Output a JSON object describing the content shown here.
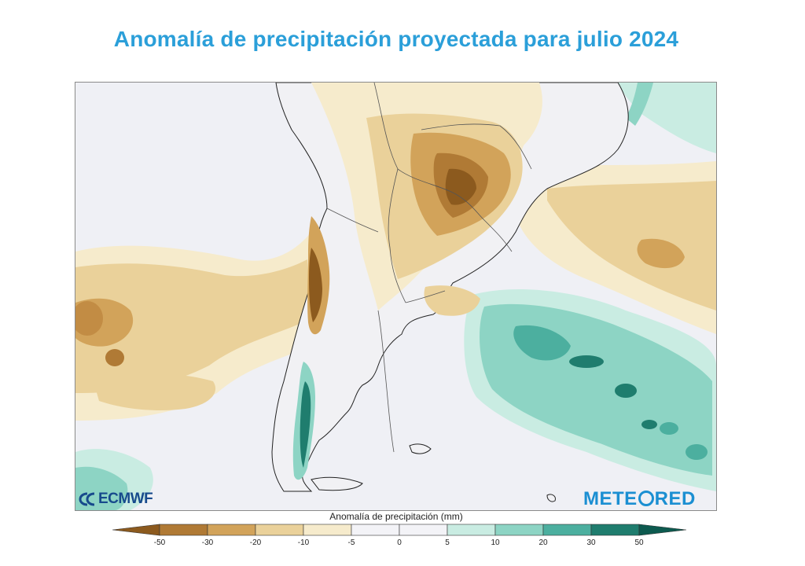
{
  "title": "Anomalía de precipitación proyectada para julio 2024",
  "logos": {
    "ecmwf": "ECMWF",
    "meteored_part1": "METE",
    "meteored_part2": "RED"
  },
  "legend": {
    "title": "Anomalía de precipitación (mm)",
    "ticks": [
      "-50",
      "-30",
      "-20",
      "-10",
      "-5",
      "0",
      "5",
      "10",
      "20",
      "30",
      "50"
    ],
    "colors": [
      "#8c5a1e",
      "#b07a35",
      "#d2a35a",
      "#ead19a",
      "#f6ebcc",
      "#f3f3f7",
      "#f3f3f7",
      "#c9ece2",
      "#8dd4c4",
      "#4caf9f",
      "#1f7d6e",
      "#0d5a4f"
    ]
  },
  "map": {
    "region": "South America (southern cone) and adjacent oceans",
    "colors": {
      "ocean_neutral": "#eff0f5",
      "land_neutral": "#f1f1f4",
      "dry_light": "#f6ebcc",
      "dry_mid": "#ead19a",
      "dry_strong": "#d2a35a",
      "dry_very_strong": "#b07a35",
      "dry_extreme": "#8c5a1e",
      "wet_light": "#c9ece2",
      "wet_mid": "#8dd4c4",
      "wet_strong": "#4caf9f",
      "wet_very_strong": "#1f7d6e",
      "border": "#555555",
      "coast": "#222222"
    }
  }
}
